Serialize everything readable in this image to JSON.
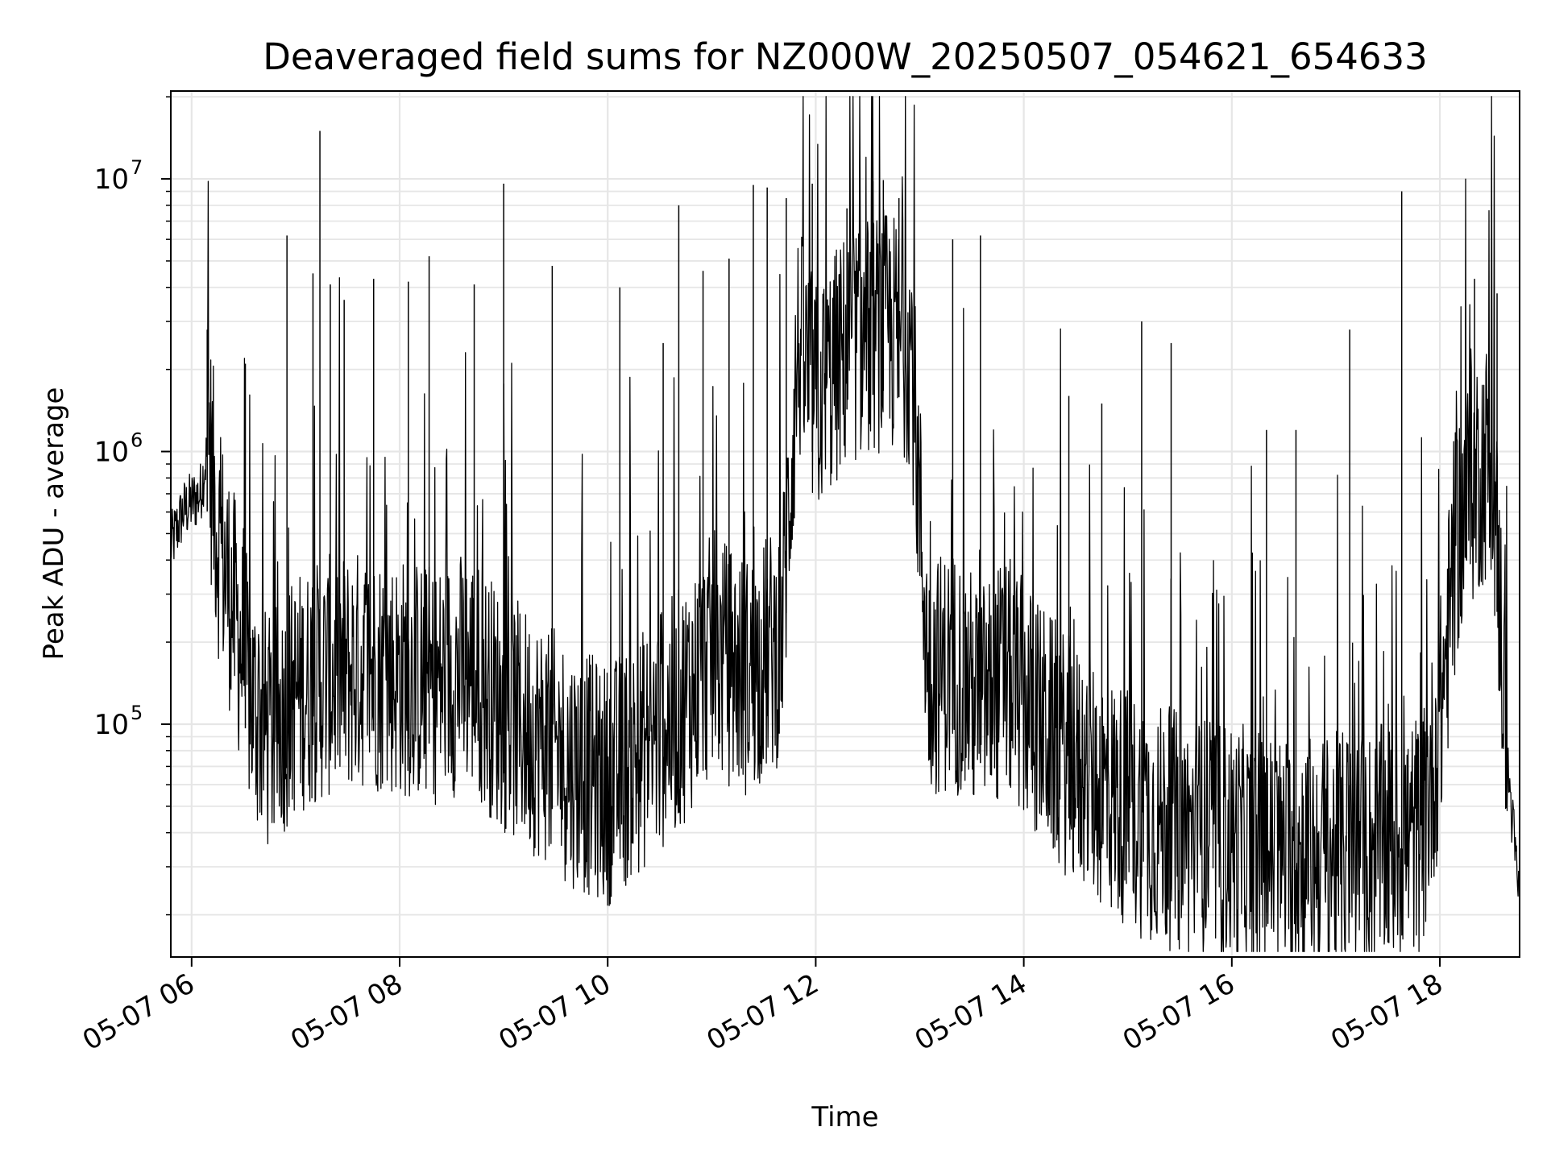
{
  "chart_data": {
    "type": "line",
    "title": "Deaveraged field sums for NZ000W_20250507_054621_654633",
    "xlabel": "Time",
    "ylabel": "Peak ADU - average",
    "x_domain": [
      "2025-05-07T05:48",
      "2025-05-07T18:46"
    ],
    "x_ticks": [
      "05-07 06",
      "05-07 08",
      "05-07 10",
      "05-07 12",
      "05-07 14",
      "05-07 16",
      "05-07 18"
    ],
    "y_scale": "log",
    "ylim": [
      14000,
      21000000
    ],
    "y_ticks": [
      {
        "mantissa": "10",
        "exponent": "5",
        "value": 100000
      },
      {
        "mantissa": "10",
        "exponent": "6",
        "value": 1000000
      },
      {
        "mantissa": "10",
        "exponent": "7",
        "value": 10000000
      }
    ],
    "grid": true,
    "line_color": "#000000",
    "series": [
      {
        "x": [
          "2025-05-07T05:48",
          "2025-05-07T05:55",
          "2025-05-07T06:05",
          "2025-05-07T06:10",
          "2025-05-07T06:15",
          "2025-05-07T06:25",
          "2025-05-07T06:35",
          "2025-05-07T06:45",
          "2025-05-07T07:00",
          "2025-05-07T07:20",
          "2025-05-07T07:40",
          "2025-05-07T08:00",
          "2025-05-07T08:20",
          "2025-05-07T08:40",
          "2025-05-07T09:00",
          "2025-05-07T09:20",
          "2025-05-07T09:40",
          "2025-05-07T10:00",
          "2025-05-07T10:20",
          "2025-05-07T10:40",
          "2025-05-07T11:00",
          "2025-05-07T11:20",
          "2025-05-07T11:40",
          "2025-05-07T11:50",
          "2025-05-07T12:00",
          "2025-05-07T12:20",
          "2025-05-07T12:40",
          "2025-05-07T12:55",
          "2025-05-07T13:05",
          "2025-05-07T13:20",
          "2025-05-07T13:35",
          "2025-05-07T13:50",
          "2025-05-07T14:10",
          "2025-05-07T14:30",
          "2025-05-07T14:50",
          "2025-05-07T15:10",
          "2025-05-07T15:30",
          "2025-05-07T15:50",
          "2025-05-07T16:10",
          "2025-05-07T16:30",
          "2025-05-07T16:50",
          "2025-05-07T17:10",
          "2025-05-07T17:30",
          "2025-05-07T17:50",
          "2025-05-07T18:00",
          "2025-05-07T18:10",
          "2025-05-07T18:20",
          "2025-05-07T18:30",
          "2025-05-07T18:40",
          "2025-05-07T18:46"
        ],
        "y": [
          450000,
          600000,
          700000,
          1100000,
          500000,
          250000,
          120000,
          90000,
          130000,
          150000,
          160000,
          150000,
          140000,
          160000,
          110000,
          90000,
          70000,
          60000,
          80000,
          110000,
          180000,
          150000,
          200000,
          2500000,
          1500000,
          2500000,
          2800000,
          2500000,
          150000,
          160000,
          120000,
          150000,
          100000,
          70000,
          55000,
          45000,
          40000,
          38000,
          35000,
          33000,
          33000,
          34000,
          36000,
          40000,
          100000,
          500000,
          800000,
          1000000,
          60000,
          22000
        ]
      }
    ],
    "spikes": [
      {
        "x": "2025-05-07T06:09",
        "y": 2800000
      },
      {
        "x": "2025-05-07T06:31",
        "y": 2100000
      },
      {
        "x": "2025-05-07T06:55",
        "y": 6200000
      },
      {
        "x": "2025-05-07T07:10",
        "y": 4500000
      },
      {
        "x": "2025-05-07T07:14",
        "y": 15000000
      },
      {
        "x": "2025-05-07T07:20",
        "y": 4100000
      },
      {
        "x": "2025-05-07T07:28",
        "y": 3600000
      },
      {
        "x": "2025-05-07T07:45",
        "y": 4300000
      },
      {
        "x": "2025-05-07T08:05",
        "y": 4200000
      },
      {
        "x": "2025-05-07T08:17",
        "y": 5200000
      },
      {
        "x": "2025-05-07T08:43",
        "y": 4100000
      },
      {
        "x": "2025-05-07T09:00",
        "y": 9600000
      },
      {
        "x": "2025-05-07T09:28",
        "y": 4800000
      },
      {
        "x": "2025-05-07T10:07",
        "y": 4000000
      },
      {
        "x": "2025-05-07T10:32",
        "y": 2500000
      },
      {
        "x": "2025-05-07T10:41",
        "y": 8000000
      },
      {
        "x": "2025-05-07T10:55",
        "y": 4600000
      },
      {
        "x": "2025-05-07T11:10",
        "y": 5100000
      },
      {
        "x": "2025-05-07T11:24",
        "y": 9500000
      },
      {
        "x": "2025-05-07T11:32",
        "y": 9300000
      },
      {
        "x": "2025-05-07T11:43",
        "y": 8500000
      },
      {
        "x": "2025-05-07T11:58",
        "y": 9600000
      },
      {
        "x": "2025-05-07T12:18",
        "y": 7800000
      },
      {
        "x": "2025-05-07T12:33",
        "y": 9800000
      },
      {
        "x": "2025-05-07T12:39",
        "y": 9900000
      },
      {
        "x": "2025-05-07T12:48",
        "y": 8500000
      },
      {
        "x": "2025-05-07T13:19",
        "y": 6000000
      },
      {
        "x": "2025-05-07T13:35",
        "y": 6200000
      },
      {
        "x": "2025-05-07T14:26",
        "y": 1600000
      },
      {
        "x": "2025-05-07T14:45",
        "y": 1500000
      },
      {
        "x": "2025-05-07T15:08",
        "y": 3000000
      },
      {
        "x": "2025-05-07T15:25",
        "y": 2500000
      },
      {
        "x": "2025-05-07T16:20",
        "y": 1200000
      },
      {
        "x": "2025-05-07T16:37",
        "y": 1200000
      },
      {
        "x": "2025-05-07T17:08",
        "y": 2800000
      },
      {
        "x": "2025-05-07T17:38",
        "y": 9000000
      },
      {
        "x": "2025-05-07T18:20",
        "y": 4300000
      },
      {
        "x": "2025-05-07T18:33",
        "y": 3800000
      }
    ]
  }
}
